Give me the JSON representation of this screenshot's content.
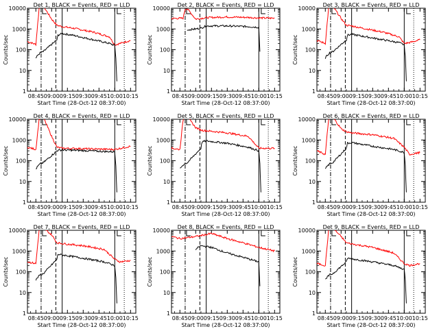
{
  "chart_data": [
    {
      "type": "line",
      "title": "Det 1, BLACK = Events, RED = LLD",
      "xlabel": "Start Time (28-Oct-12 08:37:00)",
      "ylabel": "Counts/sec",
      "xticks": [
        "08:45",
        "09:00",
        "09:15",
        "09:30",
        "09:45",
        "10:00",
        "10:15"
      ],
      "yticks": [
        "1",
        "10",
        "100",
        "1000",
        "10000"
      ],
      "yscale": "log",
      "ylim": [
        1,
        10000
      ],
      "series": [
        {
          "color": "#ff0000",
          "x": [
            "08:37",
            "08:45",
            "08:48",
            "08:50",
            "08:52",
            "09:00",
            "09:05",
            "09:10",
            "09:20",
            "09:40",
            "09:55",
            "10:00",
            "10:05",
            "10:15"
          ],
          "y": [
            250,
            180,
            9000,
            14000,
            13000,
            3000,
            1500,
            1300,
            1100,
            700,
            420,
            170,
            200,
            280
          ]
        },
        {
          "color": "#000000",
          "x": [
            "08:45",
            "08:47",
            "08:49",
            "08:52",
            "09:05",
            "09:06",
            "09:10",
            "09:20",
            "09:40",
            "09:55",
            "10:00",
            "10:01",
            "10:02"
          ],
          "y": [
            40,
            55,
            70,
            80,
            300,
            500,
            600,
            500,
            300,
            200,
            160,
            40,
            3
          ]
        }
      ]
    },
    {
      "type": "line",
      "title": "Det 2, BLACK = Events, RED = LLD",
      "xlabel": "Start Time (28-Oct-12 08:37:00)",
      "ylabel": "Counts/sec",
      "xticks": [
        "08:45",
        "09:00",
        "09:15",
        "09:30",
        "09:45",
        "10:00",
        "10:15"
      ],
      "yticks": [
        "1",
        "10",
        "100",
        "1000",
        "10000"
      ],
      "yscale": "log",
      "ylim": [
        1,
        10000
      ],
      "series": [
        {
          "color": "#ff0000",
          "x": [
            "08:37",
            "08:48",
            "08:50",
            "08:52",
            "09:00",
            "09:10",
            "09:30",
            "09:50",
            "10:00",
            "10:15"
          ],
          "y": [
            3200,
            3300,
            9000,
            9500,
            3000,
            3500,
            3800,
            3600,
            3400,
            3300
          ]
        },
        {
          "color": "#000000",
          "x": [
            "08:52",
            "09:00",
            "09:05",
            "09:10",
            "09:30",
            "09:50",
            "10:00",
            "10:01"
          ],
          "y": [
            900,
            1000,
            1100,
            1400,
            1400,
            1300,
            1200,
            80
          ]
        }
      ]
    },
    {
      "type": "line",
      "title": "Det 3, BLACK = Events, RED = LLD",
      "xlabel": "Start Time (28-Oct-12 08:37:00)",
      "ylabel": "Counts/sec",
      "xticks": [
        "08:45",
        "09:00",
        "09:15",
        "09:30",
        "09:45",
        "10:00",
        "10:15"
      ],
      "yticks": [
        "1",
        "10",
        "100",
        "1000",
        "10000"
      ],
      "yscale": "log",
      "ylim": [
        1,
        10000
      ],
      "series": [
        {
          "color": "#ff0000",
          "x": [
            "08:37",
            "08:45",
            "08:48",
            "08:50",
            "08:52",
            "09:00",
            "09:05",
            "09:10",
            "09:20",
            "09:40",
            "09:55",
            "10:00",
            "10:05",
            "10:15"
          ],
          "y": [
            280,
            200,
            9000,
            14000,
            13000,
            3200,
            1500,
            1400,
            1100,
            700,
            420,
            200,
            220,
            300
          ]
        },
        {
          "color": "#000000",
          "x": [
            "08:45",
            "08:47",
            "08:49",
            "08:52",
            "09:05",
            "09:06",
            "09:10",
            "09:20",
            "09:40",
            "09:55",
            "10:00",
            "10:01",
            "10:02"
          ],
          "y": [
            40,
            55,
            70,
            80,
            300,
            500,
            550,
            450,
            300,
            220,
            170,
            50,
            3
          ]
        }
      ]
    },
    {
      "type": "line",
      "title": "Det 4, BLACK = Events, RED = LLD",
      "xlabel": "Start Time (28-Oct-12 08:37:00)",
      "ylabel": "Counts/sec",
      "xticks": [
        "08:45",
        "09:00",
        "09:15",
        "09:30",
        "09:45",
        "10:00",
        "10:15"
      ],
      "yticks": [
        "1",
        "10",
        "100",
        "1000",
        "10000"
      ],
      "yscale": "log",
      "ylim": [
        1,
        10000
      ],
      "series": [
        {
          "color": "#ff0000",
          "x": [
            "08:37",
            "08:45",
            "08:48",
            "08:50",
            "08:52",
            "09:00",
            "09:05",
            "09:10",
            "09:30",
            "09:50",
            "10:00",
            "10:15"
          ],
          "y": [
            450,
            350,
            9000,
            14000,
            13000,
            1500,
            450,
            400,
            380,
            360,
            350,
            500
          ]
        },
        {
          "color": "#000000",
          "x": [
            "08:45",
            "08:47",
            "08:49",
            "08:52",
            "09:05",
            "09:06",
            "09:10",
            "09:30",
            "09:50",
            "10:00",
            "10:01",
            "10:02"
          ],
          "y": [
            40,
            55,
            70,
            80,
            300,
            320,
            330,
            310,
            280,
            270,
            60,
            3
          ]
        }
      ]
    },
    {
      "type": "line",
      "title": "Det 5, BLACK = Events, RED = LLD",
      "xlabel": "Start Time (28-Oct-12 08:37:00)",
      "ylabel": "Counts/sec",
      "xticks": [
        "08:45",
        "09:00",
        "09:15",
        "09:30",
        "09:45",
        "10:00",
        "10:15"
      ],
      "yticks": [
        "1",
        "10",
        "100",
        "1000",
        "10000"
      ],
      "yscale": "log",
      "ylim": [
        1,
        10000
      ],
      "series": [
        {
          "color": "#ff0000",
          "x": [
            "08:37",
            "08:45",
            "08:48",
            "08:50",
            "08:52",
            "09:00",
            "09:05",
            "09:10",
            "09:30",
            "09:50",
            "10:00",
            "10:15"
          ],
          "y": [
            400,
            350,
            9000,
            14000,
            13000,
            4000,
            3000,
            2800,
            2200,
            1500,
            400,
            400
          ]
        },
        {
          "color": "#000000",
          "x": [
            "08:45",
            "08:47",
            "08:49",
            "08:52",
            "09:05",
            "09:06",
            "09:10",
            "09:30",
            "09:50",
            "10:00",
            "10:01",
            "10:02"
          ],
          "y": [
            40,
            55,
            70,
            80,
            400,
            800,
            900,
            700,
            450,
            300,
            70,
            3
          ]
        }
      ]
    },
    {
      "type": "line",
      "title": "Det 6, BLACK = Events, RED = LLD",
      "xlabel": "Start Time (28-Oct-12 08:37:00)",
      "ylabel": "Counts/sec",
      "xticks": [
        "08:45",
        "09:00",
        "09:15",
        "09:30",
        "09:45",
        "10:00",
        "10:15"
      ],
      "yticks": [
        "1",
        "10",
        "100",
        "1000",
        "10000"
      ],
      "yscale": "log",
      "ylim": [
        1,
        10000
      ],
      "series": [
        {
          "color": "#ff0000",
          "x": [
            "08:37",
            "08:45",
            "08:48",
            "08:50",
            "08:52",
            "09:00",
            "09:05",
            "09:10",
            "09:30",
            "09:50",
            "10:00",
            "10:05",
            "10:15"
          ],
          "y": [
            300,
            200,
            9000,
            14000,
            13000,
            3500,
            2500,
            2200,
            1800,
            1200,
            450,
            200,
            250
          ]
        },
        {
          "color": "#000000",
          "x": [
            "08:45",
            "08:47",
            "08:49",
            "08:52",
            "09:05",
            "09:06",
            "09:10",
            "09:30",
            "09:50",
            "10:00",
            "10:01",
            "10:02"
          ],
          "y": [
            40,
            55,
            70,
            80,
            400,
            700,
            750,
            500,
            350,
            250,
            60,
            3
          ]
        }
      ]
    },
    {
      "type": "line",
      "title": "Det 7, BLACK = Events, RED = LLD",
      "xlabel": "Start Time (28-Oct-12 08:37:00)",
      "ylabel": "Counts/sec",
      "xticks": [
        "08:45",
        "09:00",
        "09:15",
        "09:30",
        "09:45",
        "10:00",
        "10:15"
      ],
      "yticks": [
        "1",
        "10",
        "100",
        "1000",
        "10000"
      ],
      "yscale": "log",
      "ylim": [
        1,
        10000
      ],
      "series": [
        {
          "color": "#ff0000",
          "x": [
            "08:37",
            "08:45",
            "08:48",
            "08:50",
            "08:52",
            "09:00",
            "09:05",
            "09:10",
            "09:30",
            "09:50",
            "10:00",
            "10:05",
            "10:15"
          ],
          "y": [
            300,
            250,
            9000,
            14000,
            13000,
            6000,
            2500,
            2300,
            1800,
            1200,
            400,
            300,
            350
          ]
        },
        {
          "color": "#000000",
          "x": [
            "08:45",
            "08:47",
            "08:49",
            "08:52",
            "09:05",
            "09:06",
            "09:10",
            "09:30",
            "09:50",
            "10:00",
            "10:01",
            "10:02"
          ],
          "y": [
            40,
            55,
            70,
            80,
            400,
            700,
            650,
            450,
            300,
            200,
            50,
            3
          ]
        }
      ]
    },
    {
      "type": "line",
      "title": "Det 8, BLACK = Events, RED = LLD",
      "xlabel": "Start Time (28-Oct-12 08:37:00)",
      "ylabel": "Counts/sec",
      "xticks": [
        "08:45",
        "09:00",
        "09:15",
        "09:30",
        "09:45",
        "10:00",
        "10:15"
      ],
      "yticks": [
        "1",
        "10",
        "100",
        "1000",
        "10000"
      ],
      "yscale": "log",
      "ylim": [
        1,
        10000
      ],
      "series": [
        {
          "color": "#ff0000",
          "x": [
            "08:37",
            "08:45",
            "09:00",
            "09:15",
            "09:30",
            "09:45",
            "10:00",
            "10:15"
          ],
          "y": [
            5000,
            4000,
            5000,
            7000,
            4000,
            2500,
            1500,
            1000
          ]
        },
        {
          "color": "#000000",
          "x": [
            "09:00",
            "09:05",
            "09:15",
            "09:30",
            "09:45",
            "10:00",
            "10:01"
          ],
          "y": [
            1200,
            1800,
            1500,
            800,
            500,
            300,
            20
          ]
        }
      ]
    },
    {
      "type": "line",
      "title": "Det 9, BLACK = Events, RED = LLD",
      "xlabel": "Start Time (28-Oct-12 08:37:00)",
      "ylabel": "Counts/sec",
      "xticks": [
        "08:45",
        "09:00",
        "09:15",
        "09:30",
        "09:45",
        "10:00",
        "10:15"
      ],
      "yticks": [
        "1",
        "10",
        "100",
        "1000",
        "10000"
      ],
      "yscale": "log",
      "ylim": [
        1,
        10000
      ],
      "series": [
        {
          "color": "#ff0000",
          "x": [
            "08:37",
            "08:45",
            "08:48",
            "08:50",
            "08:52",
            "09:00",
            "09:05",
            "09:10",
            "09:30",
            "09:50",
            "10:00",
            "10:05",
            "10:15"
          ],
          "y": [
            250,
            200,
            9000,
            14000,
            13000,
            5000,
            2500,
            2200,
            1500,
            800,
            250,
            200,
            250
          ]
        },
        {
          "color": "#000000",
          "x": [
            "08:45",
            "08:47",
            "08:49",
            "08:52",
            "09:05",
            "09:06",
            "09:10",
            "09:30",
            "09:50",
            "10:00",
            "10:01",
            "10:02"
          ],
          "y": [
            40,
            55,
            70,
            80,
            300,
            450,
            420,
            300,
            200,
            130,
            40,
            3
          ]
        }
      ]
    }
  ]
}
